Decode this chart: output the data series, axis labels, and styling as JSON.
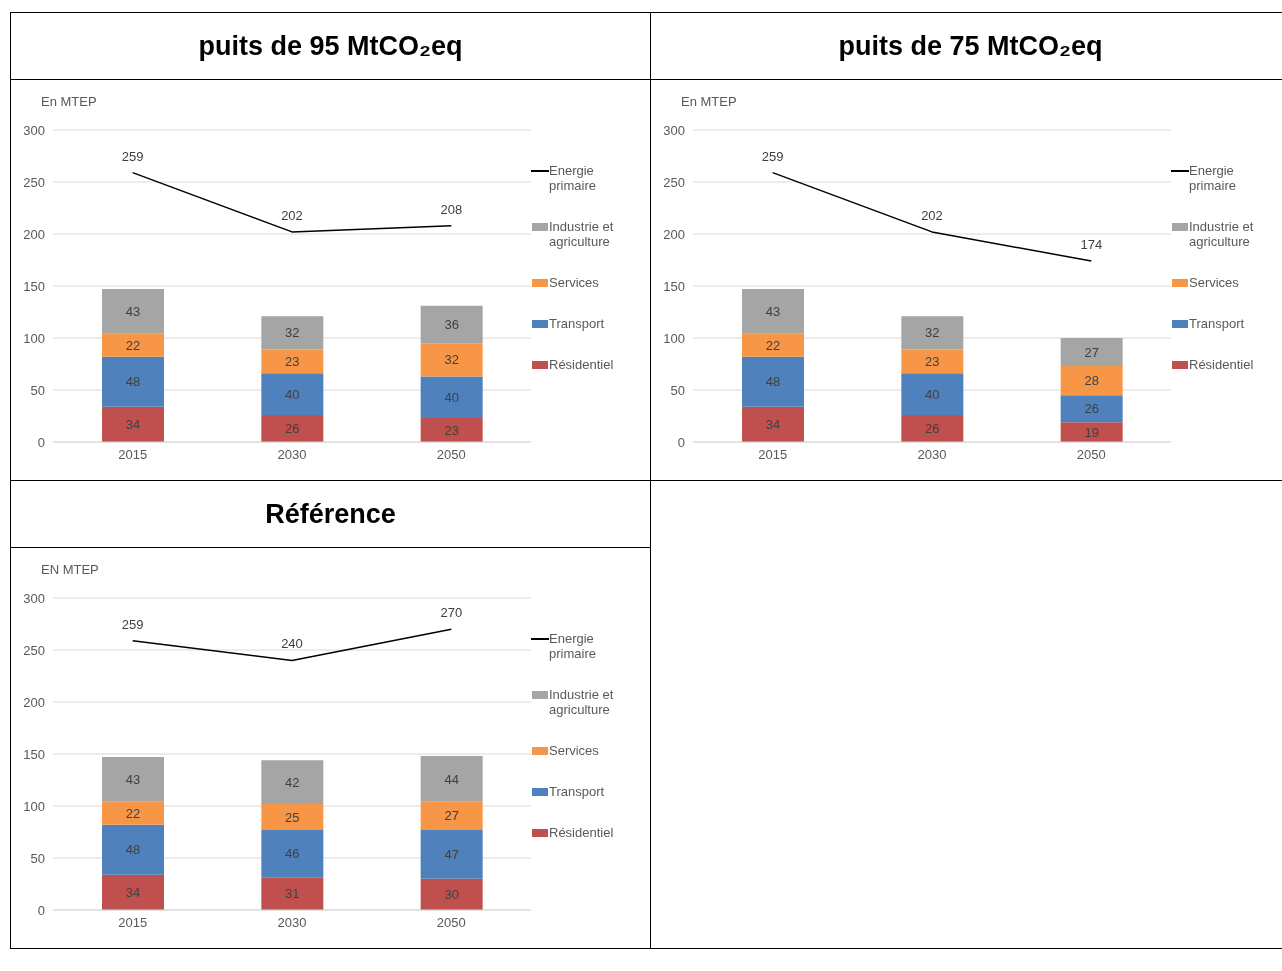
{
  "chart_data": [
    {
      "type": "bar",
      "title": "puits de 95 MtCO₂eq",
      "ylabel": "En MTEP",
      "categories": [
        "2015",
        "2030",
        "2050"
      ],
      "stacked": true,
      "ylim": [
        0,
        300
      ],
      "yticks": [
        0,
        50,
        100,
        150,
        200,
        250,
        300
      ],
      "grid": "y",
      "legend": "right",
      "data_labels": true,
      "marker": "none",
      "series": [
        {
          "name": "Résidentiel",
          "color": "#c0504d",
          "values": [
            34,
            26,
            23
          ]
        },
        {
          "name": "Transport",
          "color": "#4f81bd",
          "values": [
            48,
            40,
            40
          ]
        },
        {
          "name": "Services",
          "color": "#f79646",
          "values": [
            22,
            23,
            32
          ]
        },
        {
          "name": "Industrie et agriculture",
          "color": "#a5a5a5",
          "values": [
            43,
            32,
            36
          ]
        },
        {
          "name": "Energie primaire",
          "type": "line",
          "color": "#000000",
          "values": [
            259,
            202,
            208
          ]
        }
      ]
    },
    {
      "type": "bar",
      "title": "puits de 75 MtCO₂eq",
      "ylabel": "En MTEP",
      "categories": [
        "2015",
        "2030",
        "2050"
      ],
      "stacked": true,
      "ylim": [
        0,
        300
      ],
      "yticks": [
        0,
        50,
        100,
        150,
        200,
        250,
        300
      ],
      "grid": "y",
      "legend": "right",
      "data_labels": true,
      "marker": "none",
      "series": [
        {
          "name": "Résidentiel",
          "color": "#c0504d",
          "values": [
            34,
            26,
            19
          ]
        },
        {
          "name": "Transport",
          "color": "#4f81bd",
          "values": [
            48,
            40,
            26
          ]
        },
        {
          "name": "Services",
          "color": "#f79646",
          "values": [
            22,
            23,
            28
          ]
        },
        {
          "name": "Industrie et agriculture",
          "color": "#a5a5a5",
          "values": [
            43,
            32,
            27
          ]
        },
        {
          "name": "Energie primaire",
          "type": "line",
          "color": "#000000",
          "values": [
            259,
            202,
            174
          ]
        }
      ]
    },
    {
      "type": "bar",
      "title": "Référence",
      "ylabel": "EN MTEP",
      "categories": [
        "2015",
        "2030",
        "2050"
      ],
      "stacked": true,
      "ylim": [
        0,
        300
      ],
      "yticks": [
        0,
        50,
        100,
        150,
        200,
        250,
        300
      ],
      "grid": "y",
      "legend": "right",
      "data_labels": true,
      "marker": "none",
      "series": [
        {
          "name": "Résidentiel",
          "color": "#c0504d",
          "values": [
            34,
            31,
            30
          ]
        },
        {
          "name": "Transport",
          "color": "#4f81bd",
          "values": [
            48,
            46,
            47
          ]
        },
        {
          "name": "Services",
          "color": "#f79646",
          "values": [
            22,
            25,
            27
          ]
        },
        {
          "name": "Industrie et agriculture",
          "color": "#a5a5a5",
          "values": [
            43,
            42,
            44
          ]
        },
        {
          "name": "Energie primaire",
          "type": "line",
          "color": "#000000",
          "values": [
            259,
            240,
            270
          ]
        }
      ]
    }
  ]
}
